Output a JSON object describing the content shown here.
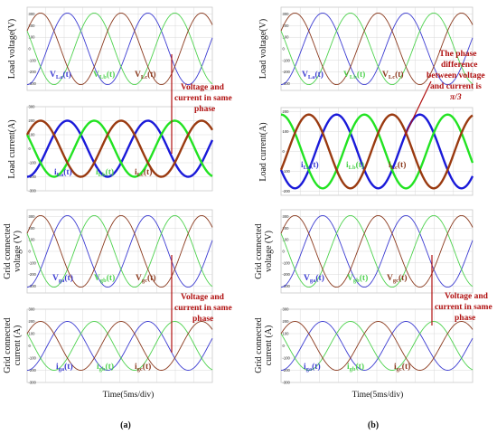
{
  "chart_data": [
    {
      "type": "line",
      "panel": "a-load-voltage",
      "ylabel": "Load voltage(V)",
      "ylim": [
        -360,
        360
      ],
      "yticks": [
        "300",
        "200",
        "100",
        "0",
        "-100",
        "-200",
        "-300"
      ],
      "series": [
        {
          "name": "V_La(t)",
          "amplitude": 310,
          "phase_deg": 0,
          "color": "#3c3cd2",
          "width": 0.9
        },
        {
          "name": "V_Lb(t)",
          "amplitude": 310,
          "phase_deg": -120,
          "color": "#4dd24d",
          "width": 0.9
        },
        {
          "name": "V_Lc(t)",
          "amplitude": 310,
          "phase_deg": 120,
          "color": "#8b3a1e",
          "width": 0.9
        }
      ]
    },
    {
      "type": "line",
      "panel": "a-load-current",
      "ylabel": "Load current(A)",
      "ylim": [
        -300,
        300
      ],
      "yticks": [
        "300",
        "200",
        "100",
        "0",
        "-100",
        "-200",
        "-300"
      ],
      "series": [
        {
          "name": "i_La(t)",
          "amplitude": 200,
          "phase_deg": 0,
          "color": "#1a1ad9",
          "width": 2.4
        },
        {
          "name": "i_Lb(t)",
          "amplitude": 200,
          "phase_deg": -120,
          "color": "#22e322",
          "width": 2.4
        },
        {
          "name": "i_Lc(t)",
          "amplitude": 200,
          "phase_deg": 120,
          "color": "#9a3a10",
          "width": 2.4
        }
      ]
    },
    {
      "type": "line",
      "panel": "a-grid-voltage",
      "ylabel": "Grid connected voltage (V)",
      "ylim": [
        -360,
        360
      ],
      "yticks": [
        "300",
        "200",
        "100",
        "0",
        "-100",
        "-200",
        "-300"
      ],
      "series": [
        {
          "name": "V_ga(t)",
          "amplitude": 310,
          "phase_deg": 0,
          "color": "#3c3cd2",
          "width": 0.9
        },
        {
          "name": "V_gb(t)",
          "amplitude": 310,
          "phase_deg": -120,
          "color": "#4dd24d",
          "width": 0.9
        },
        {
          "name": "V_gc(t)",
          "amplitude": 310,
          "phase_deg": 120,
          "color": "#8b3a1e",
          "width": 0.9
        }
      ]
    },
    {
      "type": "line",
      "panel": "a-grid-current",
      "ylabel": "Grid connected current (A)",
      "ylim": [
        -300,
        300
      ],
      "yticks": [
        "300",
        "200",
        "100",
        "0",
        "-100",
        "-200",
        "-300"
      ],
      "series": [
        {
          "name": "i_ga(t)",
          "amplitude": 200,
          "phase_deg": 0,
          "color": "#3c3cd2",
          "width": 0.9
        },
        {
          "name": "i_gb(t)",
          "amplitude": 200,
          "phase_deg": -120,
          "color": "#4dd24d",
          "width": 0.9
        },
        {
          "name": "i_gc(t)",
          "amplitude": 200,
          "phase_deg": 120,
          "color": "#8b3a1e",
          "width": 0.9
        }
      ]
    },
    {
      "type": "line",
      "panel": "b-load-voltage",
      "ylabel": "Load voltage(V)",
      "ylim": [
        -360,
        360
      ],
      "yticks": [
        "300",
        "200",
        "100",
        "0",
        "-100",
        "-200",
        "-300"
      ],
      "series": [
        {
          "name": "V_La(t)",
          "amplitude": 310,
          "phase_deg": 0,
          "color": "#3c3cd2",
          "width": 0.9
        },
        {
          "name": "V_Lb(t)",
          "amplitude": 310,
          "phase_deg": -120,
          "color": "#4dd24d",
          "width": 0.9
        },
        {
          "name": "V_Lc(t)",
          "amplitude": 310,
          "phase_deg": 120,
          "color": "#8b3a1e",
          "width": 0.9
        }
      ]
    },
    {
      "type": "line",
      "panel": "b-load-current",
      "ylabel": "Load current(A)",
      "ylim": [
        -220,
        220
      ],
      "yticks": [
        "200",
        "100",
        "0",
        "-100",
        "-200"
      ],
      "series": [
        {
          "name": "i_La(t)",
          "amplitude": 185,
          "phase_deg": -60,
          "color": "#1a1ad9",
          "width": 2.4
        },
        {
          "name": "i_Lb(t)",
          "amplitude": 185,
          "phase_deg": -180,
          "color": "#22e322",
          "width": 2.4
        },
        {
          "name": "i_Lc(t)",
          "amplitude": 185,
          "phase_deg": 60,
          "color": "#9a3a10",
          "width": 2.4
        }
      ]
    },
    {
      "type": "line",
      "panel": "b-grid-voltage",
      "ylabel": "Grid connected voltage (V)",
      "ylim": [
        -360,
        360
      ],
      "yticks": [
        "300",
        "200",
        "100",
        "0",
        "-100",
        "-200",
        "-300"
      ],
      "series": [
        {
          "name": "V_ga(t)",
          "amplitude": 310,
          "phase_deg": 0,
          "color": "#3c3cd2",
          "width": 0.9
        },
        {
          "name": "V_gb(t)",
          "amplitude": 310,
          "phase_deg": -120,
          "color": "#4dd24d",
          "width": 0.9
        },
        {
          "name": "V_gc(t)",
          "amplitude": 310,
          "phase_deg": 120,
          "color": "#8b3a1e",
          "width": 0.9
        }
      ]
    },
    {
      "type": "line",
      "panel": "b-grid-current",
      "ylabel": "Grid connected current (A)",
      "ylim": [
        -300,
        300
      ],
      "yticks": [
        "300",
        "200",
        "100",
        "0",
        "-100",
        "-200",
        "-300"
      ],
      "series": [
        {
          "name": "i_ga(t)",
          "amplitude": 200,
          "phase_deg": 0,
          "color": "#3c3cd2",
          "width": 0.9
        },
        {
          "name": "i_gb(t)",
          "amplitude": 200,
          "phase_deg": -120,
          "color": "#4dd24d",
          "width": 0.9
        },
        {
          "name": "i_gc(t)",
          "amplitude": 200,
          "phase_deg": 120,
          "color": "#8b3a1e",
          "width": 0.9
        }
      ]
    }
  ],
  "waveform": {
    "cycles_shown": 2.3,
    "start_phase_deg": 270
  },
  "labels": {
    "xlabel": "Time(5ms/div)",
    "panel_a": "(a)",
    "panel_b": "(b)",
    "a_load_voltage_label": "Load voltage(V)",
    "a_load_current_label": "Load current(A)",
    "a_grid_voltage_label_1": "Grid connected",
    "a_grid_voltage_label_2": "voltage (V)",
    "a_grid_current_label_1": "Grid connected",
    "a_grid_current_label_2": "current (A)",
    "b_load_voltage_label": "Load voltage(V)",
    "b_load_current_label": "Load current(A)",
    "b_grid_voltage_label_1": "Grid connected",
    "b_grid_voltage_label_2": "voltage (V)",
    "b_grid_current_label_1": "Grid connected",
    "b_grid_current_label_2": "current (A)",
    "ann_a_top_1": "Voltage and",
    "ann_a_top_2": "current in same",
    "ann_a_top_3": "phase",
    "ann_a_bottom_1": "Voltage and",
    "ann_a_bottom_2": "current in same",
    "ann_a_bottom_3": "phase",
    "ann_b_top_1": "The phase",
    "ann_b_top_2": "difference",
    "ann_b_top_3": "between voltage",
    "ann_b_top_4": "and current is",
    "ann_b_top_5": "π/3",
    "ann_b_bottom_1": "Voltage and",
    "ann_b_bottom_2": "current in same",
    "ann_b_bottom_3": "phase"
  },
  "series_labels": {
    "VLa_main": "V",
    "VLa_sub": "La",
    "VLa_tail": "(t)",
    "VLb_main": "V",
    "VLb_sub": "Lb",
    "VLb_tail": "(t)",
    "VLc_main": "V",
    "VLc_sub": "Lc",
    "VLc_tail": "(t)",
    "iLa_main": "i",
    "iLa_sub": "La",
    "iLa_tail": "(t)",
    "iLb_main": "i",
    "iLb_sub": "Lb",
    "iLb_tail": "(t)",
    "iLc_main": "i",
    "iLc_sub": "Lc",
    "iLc_tail": "(t)",
    "Vga_main": "V",
    "Vga_sub": "ga",
    "Vga_tail": "(t)",
    "Vgb_main": "V",
    "Vgb_sub": "gb",
    "Vgb_tail": "(t)",
    "Vgc_main": "V",
    "Vgc_sub": "gc",
    "Vgc_tail": "(t)",
    "iga_main": "i",
    "iga_sub": "ga",
    "iga_tail": "(t)",
    "igb_main": "i",
    "igb_sub": "gb",
    "igb_tail": "(t)",
    "igc_main": "i",
    "igc_sub": "gc",
    "igc_tail": "(t)"
  },
  "colors": {
    "annotation": "#b01010",
    "blue": "#3c3cd2",
    "green": "#4dd24d",
    "brown": "#8b3a1e"
  }
}
